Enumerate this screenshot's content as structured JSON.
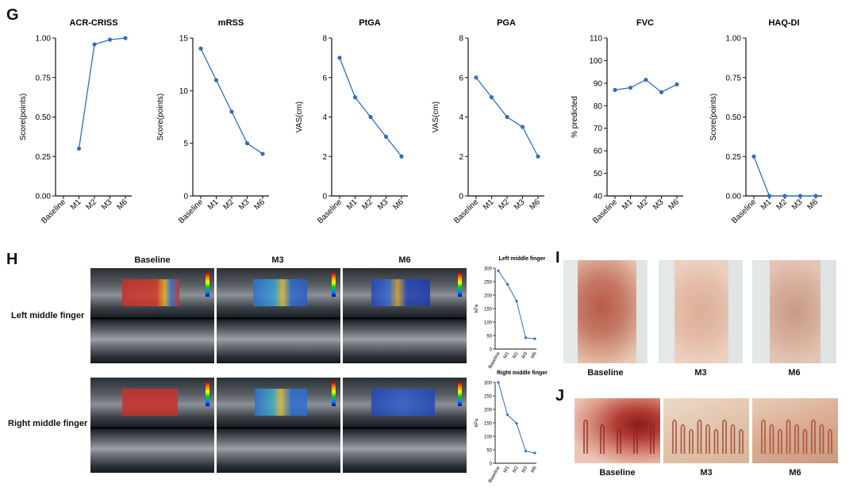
{
  "panels": {
    "g": "G",
    "h": "H",
    "i": "I",
    "j": "J"
  },
  "line_charts": [
    {
      "id": "acr",
      "title": "ACR-CRISS",
      "ylabel": "Score(points)",
      "ylim": [
        0,
        1
      ],
      "yticks": [
        "0.00",
        "0.25",
        "0.50",
        "0.75",
        "1.00"
      ],
      "yvals": [
        0,
        0.25,
        0.5,
        0.75,
        1
      ]
    },
    {
      "id": "mrss",
      "title": "mRSS",
      "ylabel": "Score(points)",
      "ylim": [
        0,
        15
      ],
      "yticks": [
        "0",
        "5",
        "10",
        "15"
      ],
      "yvals": [
        0,
        5,
        10,
        15
      ]
    },
    {
      "id": "ptga",
      "title": "PtGA",
      "ylabel": "VAS(cm)",
      "ylim": [
        0,
        8
      ],
      "yticks": [
        "0",
        "2",
        "4",
        "6",
        "8"
      ],
      "yvals": [
        0,
        2,
        4,
        6,
        8
      ]
    },
    {
      "id": "pga",
      "title": "PGA",
      "ylabel": "VAS(cm)",
      "ylim": [
        0,
        8
      ],
      "yticks": [
        "0",
        "2",
        "4",
        "6",
        "8"
      ],
      "yvals": [
        0,
        2,
        4,
        6,
        8
      ]
    },
    {
      "id": "fvc",
      "title": "FVC",
      "ylabel": "% predicted",
      "ylim": [
        40,
        110
      ],
      "yticks": [
        "40",
        "50",
        "60",
        "70",
        "80",
        "90",
        "100",
        "110"
      ],
      "yvals": [
        40,
        50,
        60,
        70,
        80,
        90,
        100,
        110
      ]
    },
    {
      "id": "haq",
      "title": "HAQ-DI",
      "ylabel": "Score(points)",
      "ylim": [
        0,
        1
      ],
      "yticks": [
        "0.00",
        "0.25",
        "0.50",
        "0.75",
        "1.00"
      ],
      "yvals": [
        0,
        0.25,
        0.5,
        0.75,
        1
      ]
    }
  ],
  "chart_data": [
    {
      "type": "line",
      "title": "ACR-CRISS",
      "ylabel": "Score(points)",
      "categories": [
        "Baseline",
        "M1",
        "M2",
        "M3",
        "M6"
      ],
      "series": [
        {
          "values": [
            null,
            0.3,
            0.96,
            0.99,
            1.0
          ]
        }
      ],
      "ylim": [
        0,
        1
      ]
    },
    {
      "type": "line",
      "title": "mRSS",
      "ylabel": "Score(points)",
      "categories": [
        "Baseline",
        "M1",
        "M2",
        "M3",
        "M6"
      ],
      "series": [
        {
          "values": [
            14,
            11,
            8,
            5,
            4
          ]
        }
      ],
      "ylim": [
        0,
        15
      ]
    },
    {
      "type": "line",
      "title": "PtGA",
      "ylabel": "VAS(cm)",
      "categories": [
        "Baseline",
        "M1",
        "M2",
        "M3",
        "M6"
      ],
      "series": [
        {
          "values": [
            7,
            5,
            4,
            3,
            2
          ]
        }
      ],
      "ylim": [
        0,
        8
      ]
    },
    {
      "type": "line",
      "title": "PGA",
      "ylabel": "VAS(cm)",
      "categories": [
        "Baseline",
        "M1",
        "M2",
        "M3",
        "M6"
      ],
      "series": [
        {
          "values": [
            6,
            5,
            4,
            3.5,
            2
          ]
        }
      ],
      "ylim": [
        0,
        8
      ]
    },
    {
      "type": "line",
      "title": "FVC",
      "ylabel": "% predicted",
      "categories": [
        "Baseline",
        "M1",
        "M2",
        "M3",
        "M6"
      ],
      "series": [
        {
          "values": [
            87,
            88,
            91.5,
            86,
            89.5
          ]
        }
      ],
      "ylim": [
        40,
        110
      ]
    },
    {
      "type": "line",
      "title": "HAQ-DI",
      "ylabel": "Score(points)",
      "categories": [
        "Baseline",
        "M1",
        "M2",
        "M3",
        "M6"
      ],
      "series": [
        {
          "values": [
            0.25,
            0,
            0,
            0,
            0
          ]
        }
      ],
      "ylim": [
        0,
        1
      ]
    },
    {
      "type": "line",
      "title": "Left middle finger",
      "ylabel": "kPa",
      "categories": [
        "Baseline",
        "M1",
        "M2",
        "M3",
        "M6"
      ],
      "series": [
        {
          "values": [
            290,
            240,
            178,
            42,
            38
          ]
        }
      ],
      "ylim": [
        0,
        300
      ]
    },
    {
      "type": "line",
      "title": "Right middle finger",
      "ylabel": "kPa",
      "categories": [
        "Baseline",
        "M1",
        "M2",
        "M3",
        "M6"
      ],
      "series": [
        {
          "values": [
            300,
            180,
            148,
            45,
            38
          ]
        }
      ],
      "ylim": [
        0,
        300
      ]
    }
  ],
  "small_charts": [
    {
      "id": "left",
      "title": "Left middle finger",
      "ylabel": "kPa",
      "yticks": [
        "0",
        "50",
        "100",
        "150",
        "200",
        "250",
        "300"
      ],
      "yvals": [
        0,
        50,
        100,
        150,
        200,
        250,
        300
      ],
      "ylim": [
        0,
        300
      ]
    },
    {
      "id": "right",
      "title": "Right middle finger",
      "ylabel": "kPa",
      "yticks": [
        "0",
        "50",
        "100",
        "150",
        "200",
        "250",
        "300"
      ],
      "yvals": [
        0,
        50,
        100,
        150,
        200,
        250,
        300
      ],
      "ylim": [
        0,
        300
      ]
    }
  ],
  "x_categories": [
    "Baseline",
    "M1",
    "M2",
    "M3",
    "M6"
  ],
  "ultrasound": {
    "columns": [
      "Baseline",
      "M3",
      "M6"
    ],
    "rows": [
      "Left middle finger",
      "Right middle finger"
    ],
    "roi_colors": [
      "#c8302c",
      "#2f6fd0",
      "#2447b8"
    ]
  },
  "skin": {
    "captions": [
      "Baseline",
      "M3",
      "M6"
    ]
  },
  "capillary": {
    "captions": [
      "Baseline",
      "M3",
      "M6"
    ]
  },
  "colors": {
    "line": "#2e6fc0",
    "axis": "#111111"
  }
}
